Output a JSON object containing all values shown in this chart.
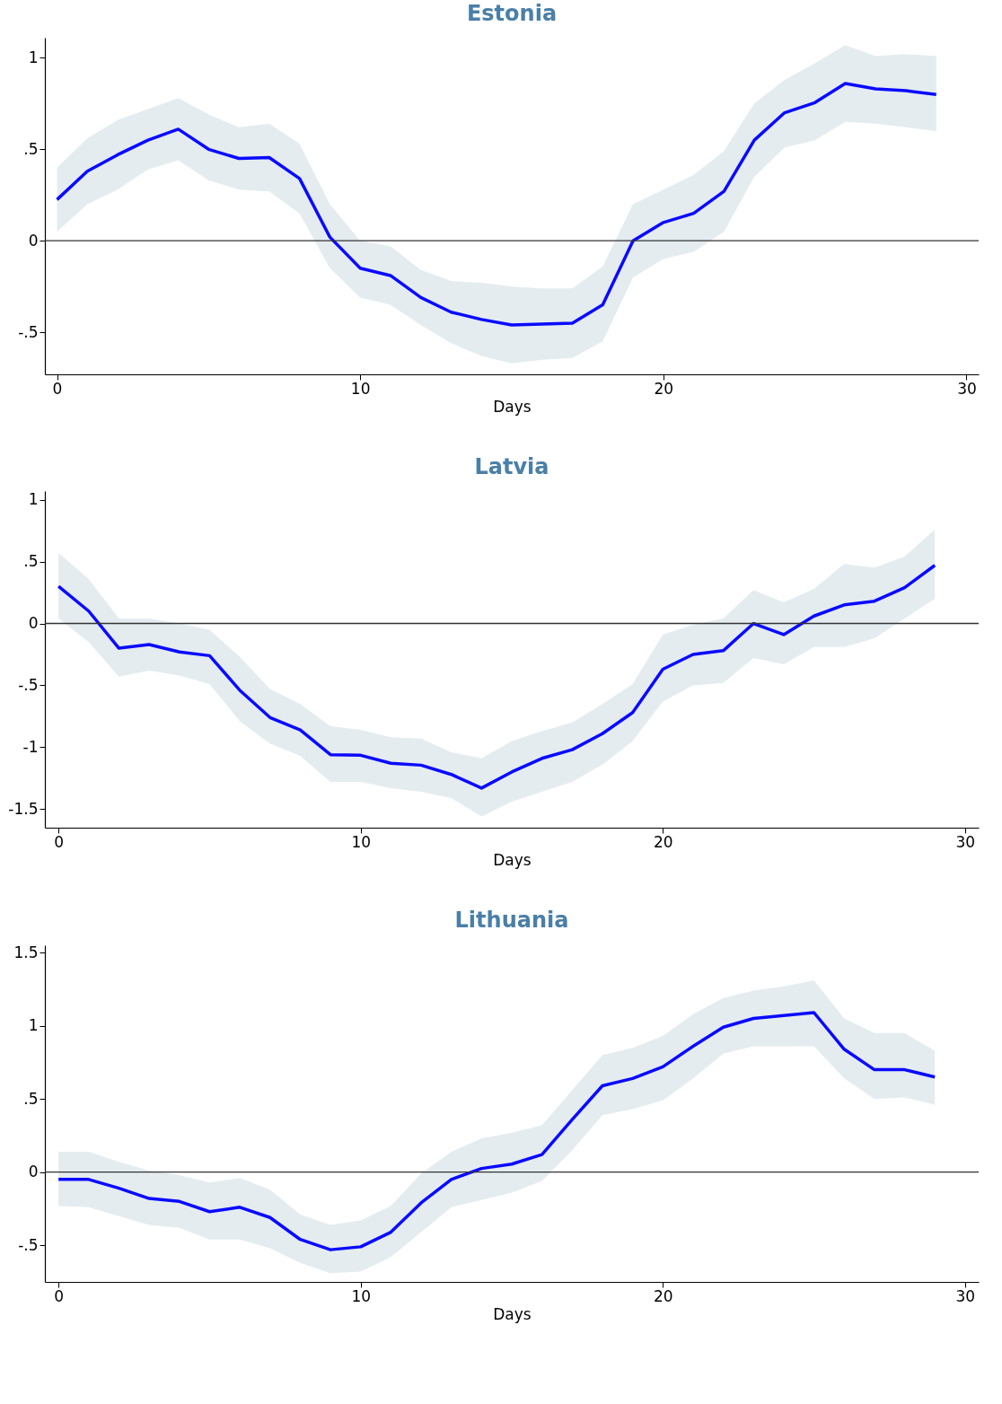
{
  "chart_data": [
    {
      "type": "line",
      "title": "Estonia",
      "xlabel": "Days",
      "x": [
        0,
        1,
        2,
        3,
        4,
        5,
        6,
        7,
        8,
        9,
        10,
        11,
        12,
        13,
        14,
        15,
        16,
        17,
        18,
        19,
        20,
        21,
        22,
        23,
        24,
        25,
        26,
        27,
        28,
        29
      ],
      "xlim": [
        -0.4,
        30.4
      ],
      "xticks": [
        0,
        10,
        20,
        30
      ],
      "ylim": [
        -0.73,
        1.11
      ],
      "yticks": [
        {
          "value": -0.5,
          "label": "-.5"
        },
        0,
        {
          "value": 0.5,
          "label": ".5"
        },
        1
      ],
      "grid": false,
      "marker": "none",
      "line_style": "solid",
      "ref_lines": [
        {
          "axis": "y",
          "value": 0,
          "color": "#333333"
        }
      ],
      "series": [
        {
          "color": "#0a0aff",
          "values": [
            0.225,
            0.38,
            0.47,
            0.55,
            0.61,
            0.5,
            0.45,
            0.455,
            0.34,
            0.02,
            -0.15,
            -0.19,
            -0.31,
            -0.39,
            -0.43,
            -0.46,
            -0.455,
            -0.45,
            -0.35,
            0.0,
            0.1,
            0.15,
            0.27,
            0.55,
            0.7,
            0.755,
            0.86,
            0.83,
            0.82,
            0.8
          ],
          "upper": [
            0.4,
            0.56,
            0.66,
            0.72,
            0.78,
            0.69,
            0.62,
            0.64,
            0.53,
            0.2,
            0.0,
            -0.03,
            -0.16,
            -0.22,
            -0.23,
            -0.25,
            -0.26,
            -0.26,
            -0.14,
            0.2,
            0.28,
            0.36,
            0.49,
            0.75,
            0.88,
            0.97,
            1.07,
            1.01,
            1.02,
            1.01
          ],
          "lower": [
            0.05,
            0.2,
            0.28,
            0.39,
            0.44,
            0.33,
            0.28,
            0.27,
            0.15,
            -0.15,
            -0.31,
            -0.35,
            -0.46,
            -0.56,
            -0.63,
            -0.67,
            -0.65,
            -0.64,
            -0.55,
            -0.2,
            -0.1,
            -0.06,
            0.05,
            0.35,
            0.51,
            0.55,
            0.65,
            0.64,
            0.62,
            0.6
          ]
        }
      ]
    },
    {
      "type": "line",
      "title": "Latvia",
      "xlabel": "Days",
      "x": [
        0,
        1,
        2,
        3,
        4,
        5,
        6,
        7,
        8,
        9,
        10,
        11,
        12,
        13,
        14,
        15,
        16,
        17,
        18,
        19,
        20,
        21,
        22,
        23,
        24,
        25,
        26,
        27,
        28,
        29
      ],
      "xlim": [
        -0.45,
        30.45
      ],
      "xticks": [
        0,
        10,
        20,
        30
      ],
      "ylim": [
        -1.65,
        1.07
      ],
      "yticks": [
        {
          "value": -1.5,
          "label": "-1.5"
        },
        -1,
        {
          "value": -0.5,
          "label": "-.5"
        },
        0,
        {
          "value": 0.5,
          "label": ".5"
        },
        1
      ],
      "grid": false,
      "marker": "none",
      "line_style": "solid",
      "ref_lines": [
        {
          "axis": "y",
          "value": 0,
          "color": "#333333"
        }
      ],
      "series": [
        {
          "color": "#0a0aff",
          "values": [
            0.3,
            0.1,
            -0.2,
            -0.17,
            -0.23,
            -0.26,
            -0.54,
            -0.76,
            -0.86,
            -1.06,
            -1.065,
            -1.13,
            -1.145,
            -1.22,
            -1.33,
            -1.2,
            -1.09,
            -1.02,
            -0.89,
            -0.72,
            -0.37,
            -0.25,
            -0.22,
            0.0,
            -0.09,
            0.06,
            0.15,
            0.18,
            0.29,
            0.47
          ],
          "upper": [
            0.57,
            0.36,
            0.04,
            0.04,
            0.0,
            -0.05,
            -0.27,
            -0.53,
            -0.65,
            -0.83,
            -0.86,
            -0.92,
            -0.93,
            -1.04,
            -1.09,
            -0.95,
            -0.87,
            -0.8,
            -0.65,
            -0.49,
            -0.09,
            -0.01,
            0.04,
            0.27,
            0.17,
            0.28,
            0.48,
            0.45,
            0.54,
            0.76
          ],
          "lower": [
            0.04,
            -0.15,
            -0.43,
            -0.38,
            -0.42,
            -0.49,
            -0.79,
            -0.97,
            -1.07,
            -1.28,
            -1.28,
            -1.33,
            -1.36,
            -1.41,
            -1.56,
            -1.44,
            -1.36,
            -1.28,
            -1.14,
            -0.95,
            -0.63,
            -0.5,
            -0.48,
            -0.28,
            -0.33,
            -0.19,
            -0.19,
            -0.12,
            0.04,
            0.2
          ]
        }
      ]
    },
    {
      "type": "line",
      "title": "Lithuania",
      "xlabel": "Days",
      "x": [
        0,
        1,
        2,
        3,
        4,
        5,
        6,
        7,
        8,
        9,
        10,
        11,
        12,
        13,
        14,
        15,
        16,
        17,
        18,
        19,
        20,
        21,
        22,
        23,
        24,
        25,
        26,
        27,
        28,
        29
      ],
      "xlim": [
        -0.45,
        30.45
      ],
      "xticks": [
        0,
        10,
        20,
        30
      ],
      "ylim": [
        -0.75,
        1.55
      ],
      "yticks": [
        {
          "value": -0.5,
          "label": "-.5"
        },
        0,
        {
          "value": 0.5,
          "label": ".5"
        },
        1,
        1.5
      ],
      "grid": false,
      "marker": "none",
      "line_style": "solid",
      "ref_lines": [
        {
          "axis": "y",
          "value": 0,
          "color": "#333333"
        }
      ],
      "series": [
        {
          "color": "#0a0aff",
          "values": [
            -0.05,
            -0.05,
            -0.11,
            -0.18,
            -0.2,
            -0.27,
            -0.24,
            -0.31,
            -0.46,
            -0.53,
            -0.51,
            -0.41,
            -0.21,
            -0.05,
            0.025,
            0.055,
            0.12,
            0.36,
            0.59,
            0.64,
            0.72,
            0.86,
            0.99,
            1.05,
            1.07,
            1.09,
            0.84,
            0.7,
            0.7,
            0.65
          ],
          "upper": [
            0.14,
            0.14,
            0.07,
            0.01,
            -0.02,
            -0.07,
            -0.04,
            -0.12,
            -0.29,
            -0.36,
            -0.33,
            -0.23,
            -0.01,
            0.14,
            0.23,
            0.27,
            0.32,
            0.56,
            0.8,
            0.85,
            0.93,
            1.08,
            1.19,
            1.24,
            1.27,
            1.31,
            1.05,
            0.95,
            0.95,
            0.83
          ],
          "lower": [
            -0.23,
            -0.24,
            -0.3,
            -0.36,
            -0.38,
            -0.46,
            -0.46,
            -0.52,
            -0.62,
            -0.69,
            -0.68,
            -0.58,
            -0.41,
            -0.24,
            -0.19,
            -0.14,
            -0.06,
            0.15,
            0.39,
            0.43,
            0.49,
            0.64,
            0.81,
            0.86,
            0.86,
            0.86,
            0.64,
            0.5,
            0.51,
            0.46
          ]
        }
      ]
    }
  ]
}
